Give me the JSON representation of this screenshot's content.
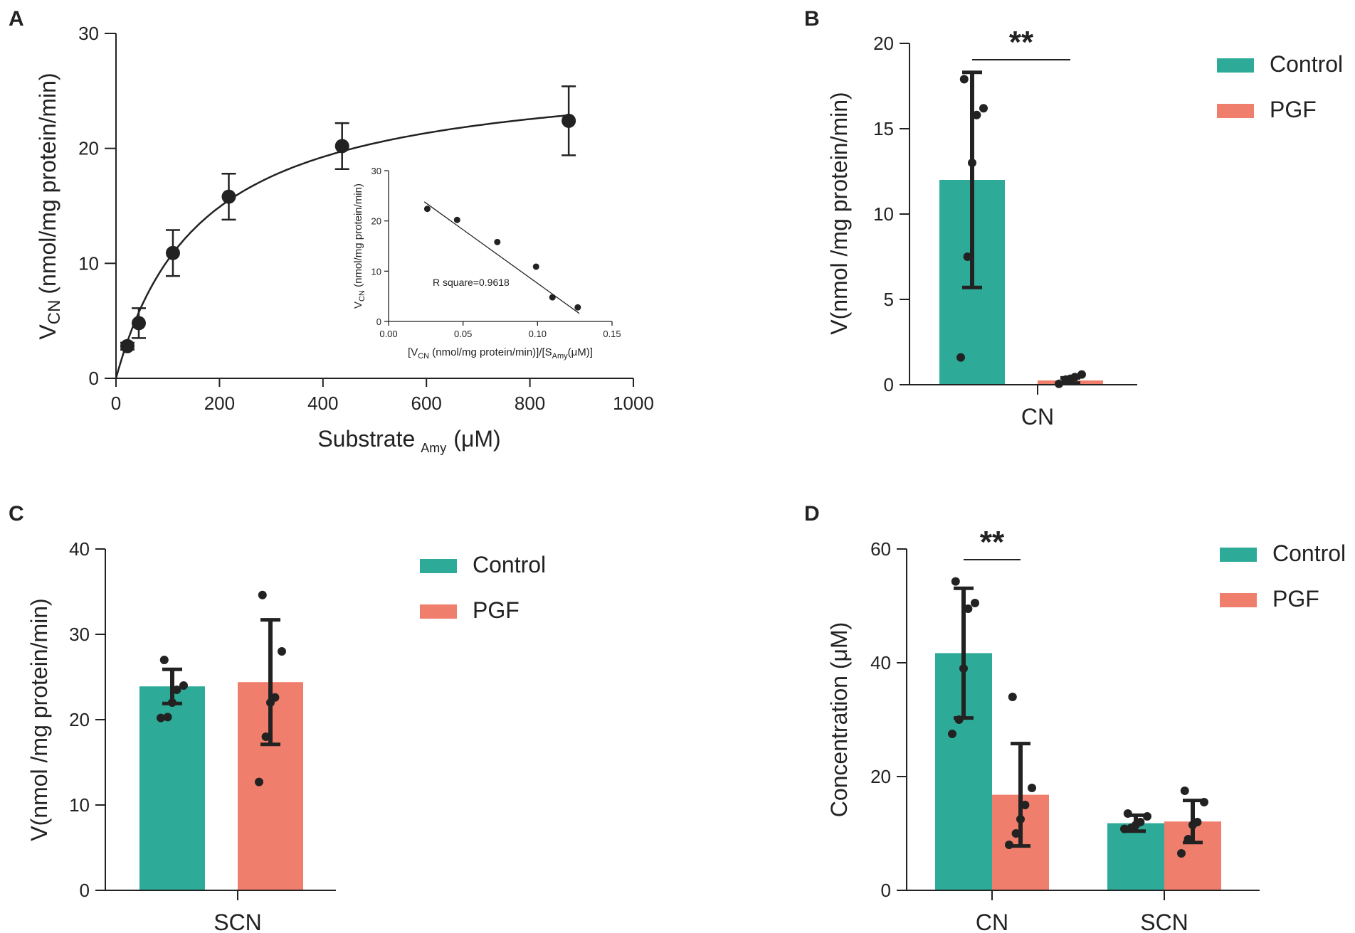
{
  "colors": {
    "control": "#2eab98",
    "pgf": "#f07e6c",
    "ink": "#222222"
  },
  "chart_data": [
    {
      "panel": "A",
      "type": "scatter",
      "title": "",
      "xlabel": "Substrate",
      "xlabel_sub": "Amy",
      "xlabel_unit": "(μM)",
      "ylabel_main": "V",
      "ylabel_sub": "CN",
      "ylabel_unit": "(nmol/mg protein/min)",
      "xlim": [
        0,
        1000
      ],
      "ylim": [
        0,
        30
      ],
      "xticks": [
        0,
        200,
        400,
        600,
        800,
        1000
      ],
      "yticks": [
        0,
        10,
        20,
        30
      ],
      "points": [
        {
          "x": 22,
          "y": 2.8,
          "err": 0.3
        },
        {
          "x": 44,
          "y": 4.8,
          "err": 1.3
        },
        {
          "x": 110,
          "y": 10.9,
          "err": 2.0
        },
        {
          "x": 218,
          "y": 15.8,
          "err": 2.0
        },
        {
          "x": 437,
          "y": 20.2,
          "err": 2.0
        },
        {
          "x": 875,
          "y": 22.4,
          "err": 3.0
        }
      ],
      "fit": {
        "model": "michaelis-menten",
        "vmax": 27.2,
        "km": 165
      },
      "inset": {
        "type": "scatter",
        "xlabel_open": "[V",
        "xlabel_sub1": "CN",
        "xlabel_mid": " (nmol/mg protein/min)]/[S",
        "xlabel_sub2": "Amy",
        "xlabel_close": "(μM)]",
        "ylabel_main": "V",
        "ylabel_sub": "CN",
        "ylabel_unit": " (nmol/mg protein/min)",
        "xlim": [
          0,
          0.15
        ],
        "ylim": [
          0,
          30
        ],
        "xticks": [
          "0.00",
          "0.05",
          "0.10",
          "0.15"
        ],
        "yticks": [
          "0",
          "10",
          "20",
          "30"
        ],
        "points": [
          {
            "x": 0.026,
            "y": 22.4
          },
          {
            "x": 0.046,
            "y": 20.2
          },
          {
            "x": 0.073,
            "y": 15.8
          },
          {
            "x": 0.099,
            "y": 10.9
          },
          {
            "x": 0.11,
            "y": 4.8
          },
          {
            "x": 0.127,
            "y": 2.8
          }
        ],
        "fit_line": [
          {
            "x": 0.024,
            "y": 23.8
          },
          {
            "x": 0.128,
            "y": 1.6
          }
        ],
        "annotation": "R square=0.9618"
      }
    },
    {
      "panel": "B",
      "type": "bar",
      "categories": [
        "CN"
      ],
      "ylabel": "V(nmol /mg protein/min)",
      "ylim": [
        0,
        20
      ],
      "yticks": [
        0,
        5,
        10,
        15,
        20
      ],
      "series": [
        {
          "name": "Control",
          "values": [
            12.0
          ],
          "sd": [
            6.3
          ],
          "points": [
            [
              1.6,
              7.5,
              13.0,
              15.8,
              16.2,
              17.9
            ]
          ]
        },
        {
          "name": "PGF",
          "values": [
            0.25
          ],
          "sd": [
            0.15
          ],
          "points": [
            [
              0.05,
              0.3,
              0.35,
              0.45,
              0.6
            ]
          ]
        }
      ],
      "significance": [
        {
          "label": "**",
          "category": "CN"
        }
      ],
      "legend": {
        "position": "top-right",
        "entries": [
          "Control",
          "PGF"
        ]
      }
    },
    {
      "panel": "C",
      "type": "bar",
      "categories": [
        "SCN"
      ],
      "ylabel": "V(nmol /mg protein/min)",
      "ylim": [
        0,
        40
      ],
      "yticks": [
        0,
        10,
        20,
        30,
        40
      ],
      "series": [
        {
          "name": "Control",
          "values": [
            23.9
          ],
          "sd": [
            2.0
          ],
          "points": [
            [
              20.2,
              20.3,
              22.0,
              23.5,
              24.0,
              27.0
            ]
          ]
        },
        {
          "name": "PGF",
          "values": [
            24.4
          ],
          "sd": [
            7.3
          ],
          "points": [
            [
              12.7,
              18.0,
              22.0,
              22.6,
              28.0,
              34.6
            ]
          ]
        }
      ],
      "significance": [],
      "legend": {
        "position": "top-right",
        "entries": [
          "Control",
          "PGF"
        ]
      }
    },
    {
      "panel": "D",
      "type": "bar",
      "categories": [
        "CN",
        "SCN"
      ],
      "ylabel": "Concentration (μM)",
      "ylim": [
        0,
        60
      ],
      "yticks": [
        0,
        20,
        40,
        60
      ],
      "series": [
        {
          "name": "Control",
          "values": [
            41.7,
            11.8
          ],
          "sd": [
            11.4,
            1.4
          ],
          "points": [
            [
              27.5,
              30.0,
              39.0,
              49.5,
              50.5,
              54.3
            ],
            [
              10.8,
              11.0,
              11.5,
              12.0,
              13.0,
              13.5
            ]
          ]
        },
        {
          "name": "PGF",
          "values": [
            16.8,
            12.1
          ],
          "sd": [
            9.0,
            3.7
          ],
          "points": [
            [
              8.0,
              10.0,
              12.5,
              15.0,
              18.0,
              34.0
            ],
            [
              6.5,
              9.0,
              11.5,
              12.0,
              15.5,
              17.5
            ]
          ]
        }
      ],
      "significance": [
        {
          "label": "**",
          "category": "CN"
        }
      ],
      "legend": {
        "position": "top-right",
        "entries": [
          "Control",
          "PGF"
        ]
      }
    }
  ]
}
